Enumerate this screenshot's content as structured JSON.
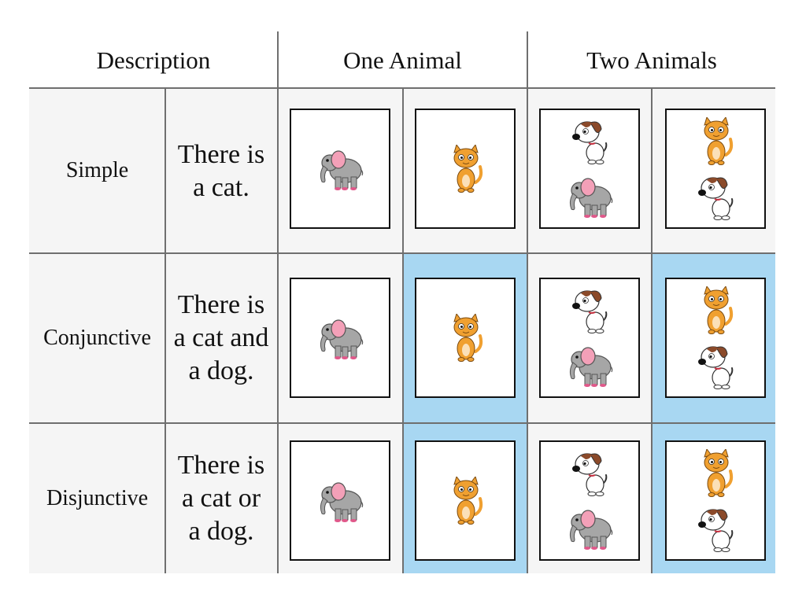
{
  "headers": {
    "description": "Description",
    "one_animal": "One Animal",
    "two_animals": "Two Animals"
  },
  "rows": [
    {
      "label": "Simple",
      "desc_lines": [
        "There is",
        "a cat.",
        ""
      ]
    },
    {
      "label": "Conjunctive",
      "desc_lines": [
        "There is",
        "a cat and",
        "a dog."
      ]
    },
    {
      "label": "Disjunctive",
      "desc_lines": [
        "There is",
        "a cat or",
        "a dog."
      ]
    }
  ],
  "cards": [
    [
      "elephant",
      "cat",
      "dog+elephant",
      "cat+dog"
    ],
    [
      "elephant",
      "cat",
      "dog+elephant",
      "cat+dog"
    ],
    [
      "elephant",
      "cat",
      "dog+elephant",
      "cat+dog"
    ]
  ],
  "highlighted_cells": [
    [
      false,
      false,
      false,
      false
    ],
    [
      false,
      true,
      false,
      true
    ],
    [
      false,
      true,
      false,
      true
    ]
  ],
  "colors": {
    "highlight": "#a8d7f2",
    "row_background": "#f5f5f5",
    "cat": "#f0a030",
    "elephant": "#a6a6a6",
    "elephant_ear": "#f3a0b8",
    "dog_patch": "#8b4a2a"
  }
}
